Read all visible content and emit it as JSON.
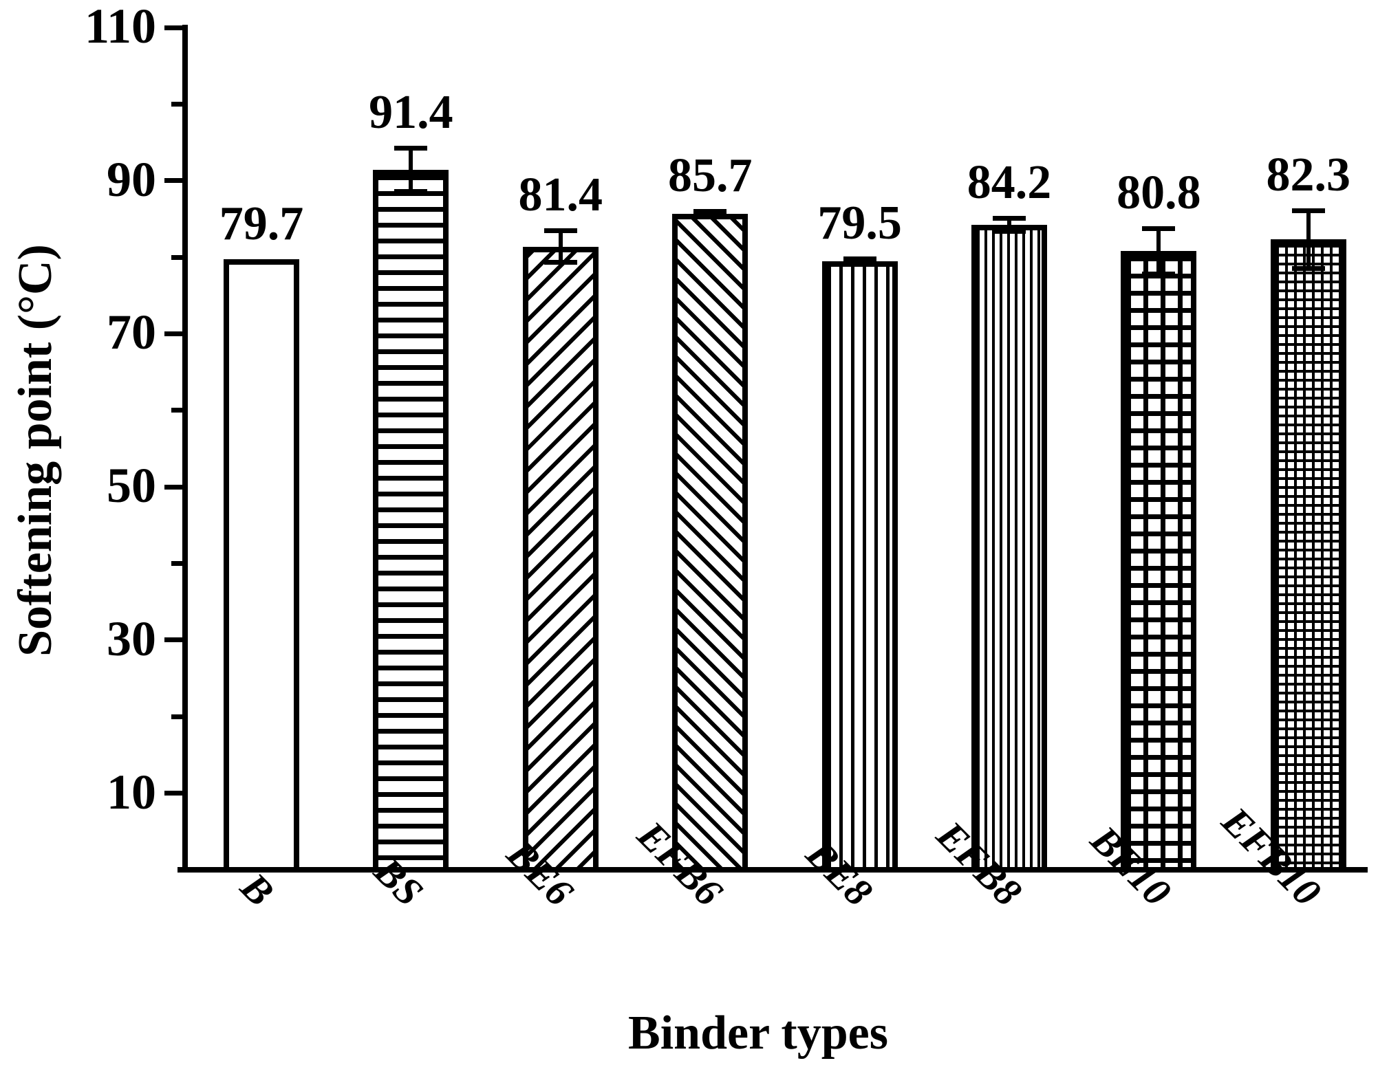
{
  "chart_data": {
    "type": "bar",
    "title": "",
    "xlabel": "Binder types",
    "ylabel": "Softening point (°C)",
    "ylim": [
      0,
      110
    ],
    "yticks_major": [
      10,
      30,
      50,
      70,
      90,
      110
    ],
    "yticks_minor": [
      20,
      40,
      60,
      80,
      100
    ],
    "grid": false,
    "legend": "none",
    "colors": {
      "foreground": "#000000",
      "background": "#ffffff"
    },
    "categories": [
      "B",
      "BS",
      "BE6",
      "EFB6",
      "BE8",
      "EFB8",
      "BE10",
      "EFB10"
    ],
    "series": [
      {
        "name": "Softening point",
        "values": [
          79.7,
          91.4,
          81.4,
          85.7,
          79.5,
          84.2,
          80.8,
          82.3
        ],
        "errors": [
          0,
          2.9,
          2.1,
          0.3,
          0.3,
          0.9,
          3.0,
          3.8
        ],
        "value_labels": [
          "79.7",
          "91.4",
          "81.4",
          "85.7",
          "79.5",
          "84.2",
          "80.8",
          "82.3"
        ],
        "patterns": [
          "plain",
          "hlines",
          "diag-up",
          "diag-down",
          "vlines-sparse",
          "vlines-dense",
          "grid-coarse",
          "grid-fine"
        ]
      }
    ]
  }
}
